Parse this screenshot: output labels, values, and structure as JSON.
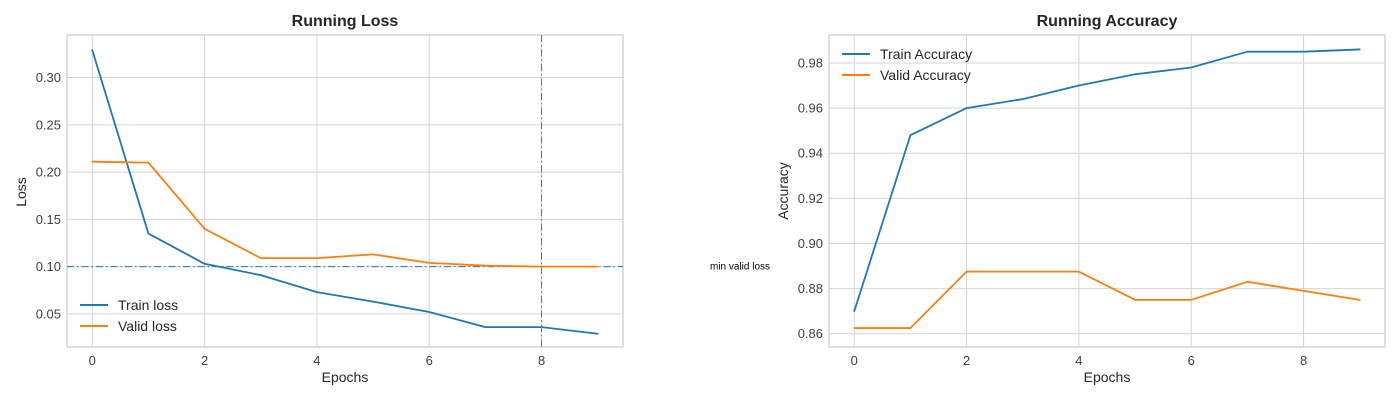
{
  "colors": {
    "train": "#1f77b4",
    "valid": "#ff7f0e",
    "grid": "#d4d4d4",
    "frame": "#cccccc",
    "reference_line": "#1f77b4"
  },
  "chart_data": [
    {
      "id": "loss",
      "type": "line",
      "title": "Running Loss",
      "xlabel": "Epochs",
      "ylabel": "Loss",
      "x": [
        0,
        1,
        2,
        3,
        4,
        5,
        6,
        7,
        8,
        9
      ],
      "xlim": [
        -0.45,
        9.45
      ],
      "ylim": [
        0.015,
        0.345
      ],
      "xticks": [
        0,
        2,
        4,
        6,
        8
      ],
      "yticks": [
        0.05,
        0.1,
        0.15,
        0.2,
        0.25,
        0.3
      ],
      "ytick_labels": [
        "0.05",
        "0.10",
        "0.15",
        "0.20",
        "0.25",
        "0.30"
      ],
      "grid": true,
      "legend_position": "lower-left",
      "series": [
        {
          "name": "Train loss",
          "color_key": "train",
          "values": [
            0.329,
            0.135,
            0.103,
            0.091,
            0.073,
            0.063,
            0.052,
            0.036,
            0.036,
            0.029
          ]
        },
        {
          "name": "Valid loss",
          "color_key": "valid",
          "values": [
            0.211,
            0.21,
            0.14,
            0.109,
            0.109,
            0.113,
            0.104,
            0.101,
            0.1,
            0.1
          ]
        }
      ],
      "reference_lines": [
        {
          "orientation": "horizontal",
          "value": 0.1,
          "style": "dash-dot"
        },
        {
          "orientation": "vertical",
          "value": 8,
          "style": "dash-dot"
        }
      ],
      "annotations": [
        {
          "text": "min valid loss",
          "x": 8,
          "y": 0.1
        }
      ]
    },
    {
      "id": "accuracy",
      "type": "line",
      "title": "Running Accuracy",
      "xlabel": "Epochs",
      "ylabel": "Accuracy",
      "x": [
        0,
        1,
        2,
        3,
        4,
        5,
        6,
        7,
        8,
        9
      ],
      "xlim": [
        -0.45,
        9.45
      ],
      "ylim": [
        0.8541,
        0.9924
      ],
      "xticks": [
        0,
        2,
        4,
        6,
        8
      ],
      "yticks": [
        0.86,
        0.88,
        0.9,
        0.92,
        0.94,
        0.96,
        0.98
      ],
      "ytick_labels": [
        "0.86",
        "0.88",
        "0.90",
        "0.92",
        "0.94",
        "0.96",
        "0.98"
      ],
      "grid": true,
      "legend_position": "top-left",
      "series": [
        {
          "name": "Train Accuracy",
          "color_key": "train",
          "values": [
            0.87,
            0.948,
            0.96,
            0.964,
            0.97,
            0.975,
            0.978,
            0.985,
            0.985,
            0.986
          ]
        },
        {
          "name": "Valid Accuracy",
          "color_key": "valid",
          "values": [
            0.8625,
            0.8625,
            0.8875,
            0.8875,
            0.8875,
            0.875,
            0.875,
            0.883,
            0.879,
            0.875
          ]
        }
      ]
    }
  ]
}
